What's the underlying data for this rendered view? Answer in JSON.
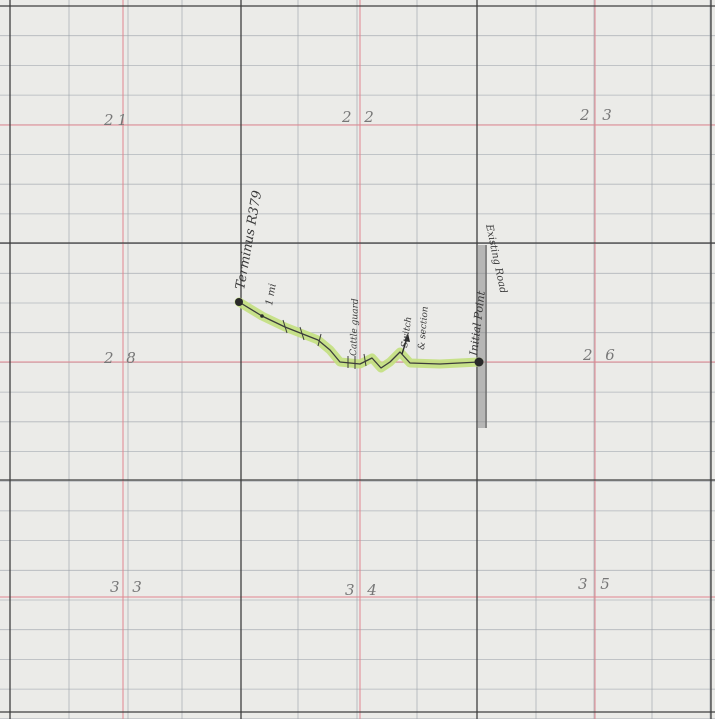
{
  "colors": {
    "paper": "#ebebe8",
    "fine_grid": "#9aa0a8",
    "quarter_line": "#e0868f",
    "section_line": "#3f3f3f",
    "route_fill": "#c3e07e",
    "route_stroke": "#3c3c3c",
    "pencil_shade": "#8a8a8a"
  },
  "sections": [
    {
      "id": "21",
      "label": "21"
    },
    {
      "id": "22",
      "label": "2 2"
    },
    {
      "id": "23",
      "label": "2 3"
    },
    {
      "id": "28",
      "label": "2 8"
    },
    {
      "id": "26",
      "label": "2 6"
    },
    {
      "id": "33",
      "label": "3 3"
    },
    {
      "id": "34",
      "label": "3 4"
    },
    {
      "id": "35",
      "label": "3 5"
    }
  ],
  "annotations": {
    "terminus": "Terminus R379",
    "mile_marker": "1 mi",
    "cattle_guard": "Cattle guard",
    "switch_section": "Switch",
    "switch_section_2": "& section",
    "initial_point": "Initial Point",
    "existing_road": "Existing Road"
  },
  "icons": {
    "terminus_point": "filled-dot-icon",
    "initial_point": "filled-dot-icon",
    "switch_arrow": "arrow-up-icon"
  }
}
